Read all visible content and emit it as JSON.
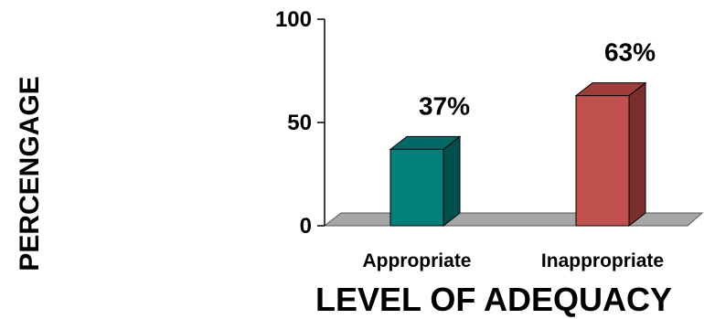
{
  "chart_data": {
    "type": "bar",
    "categories": [
      "Appropriate",
      "Inappropriate"
    ],
    "values": [
      37,
      63
    ],
    "data_labels": [
      "37%",
      "63%"
    ],
    "xlabel": "LEVEL OF ADEQUACY",
    "ylabel": "PERCENGAGE",
    "ylim": [
      0,
      100
    ],
    "yticks": [
      0,
      50,
      100
    ],
    "grid": false,
    "legend": "none",
    "style": "3d",
    "colors": {
      "bars": [
        {
          "front": "#00807a",
          "side": "#004f4b",
          "top": "#006b66"
        },
        {
          "front": "#c0504d",
          "side": "#7a2f2e",
          "top": "#9e3d3a"
        }
      ],
      "floor": "#a6a6a6"
    }
  }
}
